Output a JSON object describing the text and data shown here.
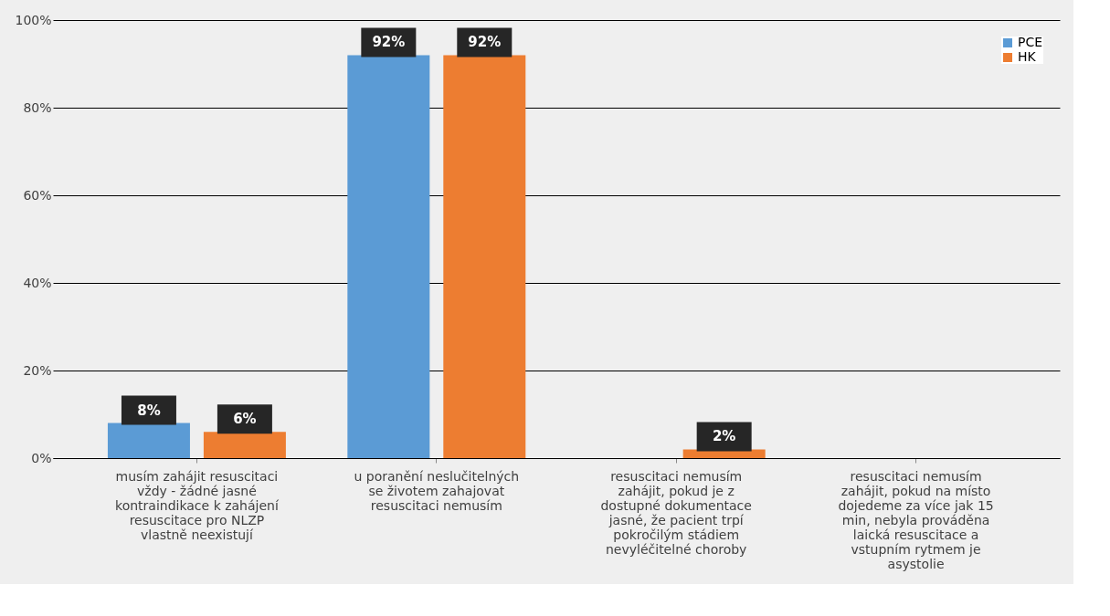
{
  "chart_data": {
    "type": "bar",
    "categories": [
      "musím zahájit resuscitaci vždy - žádné jasné kontraindikace k zahájení resuscitace pro NLZP vlastně neexistují",
      "u poranění neslučitelných se životem zahajovat resuscitaci nemusím",
      "resuscitaci nemusím zahájit, pokud je z dostupné dokumentace jasné, že pacient trpí pokročilým stádiem nevyléčitelné choroby",
      "resuscitaci nemusím zahájit, pokud na místo dojedeme za více jak 15 min, nebyla prováděna laická resuscitace a vstupním rytmem je asystolie"
    ],
    "series": [
      {
        "name": "PCE",
        "color": "#5b9bd5",
        "values": [
          8,
          92,
          0,
          0
        ],
        "value_labels": [
          "8%",
          "92%",
          null,
          null
        ]
      },
      {
        "name": "HK",
        "color": "#ed7d31",
        "values": [
          6,
          92,
          2,
          0
        ],
        "value_labels": [
          "6%",
          "92%",
          "2%",
          null
        ]
      }
    ],
    "ylim": [
      0,
      100
    ],
    "yticks": [
      {
        "value": 0,
        "label": "0%"
      },
      {
        "value": 20,
        "label": "20%"
      },
      {
        "value": 40,
        "label": "40%"
      },
      {
        "value": 60,
        "label": "60%"
      },
      {
        "value": 80,
        "label": "80%"
      },
      {
        "value": 100,
        "label": "100%"
      }
    ],
    "grid": "y",
    "legend": "top right"
  }
}
